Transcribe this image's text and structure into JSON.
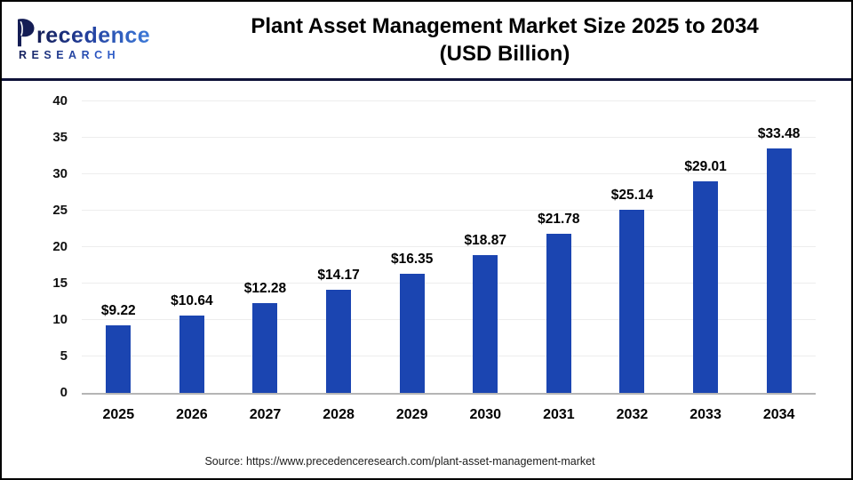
{
  "header": {
    "logo": {
      "name": "Precedence",
      "name_rest": "recedence",
      "subtext": "RESEARCH"
    },
    "title_line1": "Plant Asset Management Market Size 2025 to 2034",
    "title_line2": "(USD Billion)"
  },
  "chart_data": {
    "type": "bar",
    "title": "Plant Asset Management Market Size 2025 to 2034 (USD Billion)",
    "xlabel": "",
    "ylabel": "",
    "categories": [
      "2025",
      "2026",
      "2027",
      "2028",
      "2029",
      "2030",
      "2031",
      "2032",
      "2033",
      "2034"
    ],
    "values": [
      9.22,
      10.64,
      12.28,
      14.17,
      16.35,
      18.87,
      21.78,
      25.14,
      29.01,
      33.48
    ],
    "value_labels": [
      "$9.22",
      "$10.64",
      "$12.28",
      "$14.17",
      "$16.35",
      "$18.87",
      "$21.78",
      "$25.14",
      "$29.01",
      "$33.48"
    ],
    "ylim": [
      0,
      40
    ],
    "yticks": [
      0,
      5,
      10,
      15,
      20,
      25,
      30,
      35,
      40
    ],
    "grid": true,
    "legend": false,
    "bar_color": "#1b45b1"
  },
  "footer": {
    "source": "Source: https://www.precedenceresearch.com/plant-asset-management-market"
  },
  "colors": {
    "bar": "#1b45b1",
    "divider": "#0e1238",
    "grid": "#ededed",
    "axis": "#b5b5b5",
    "logo_dark": "#141d55",
    "logo_blue": "#3d7ad9"
  }
}
